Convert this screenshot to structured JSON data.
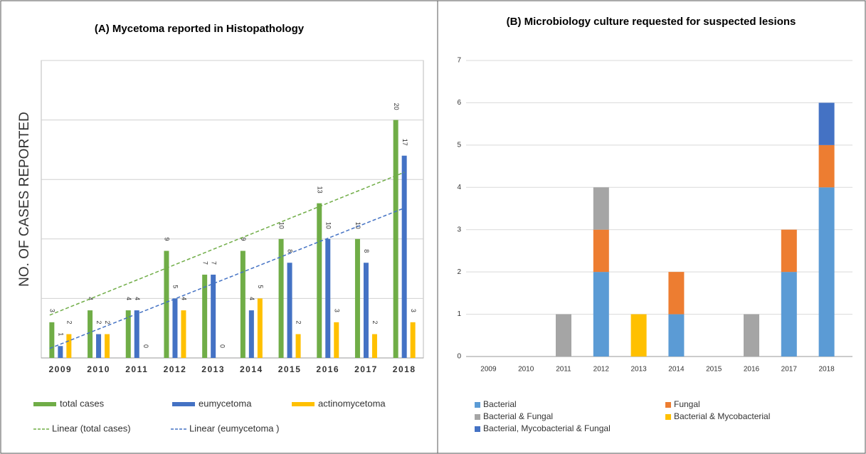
{
  "chart_data": [
    {
      "type": "bar",
      "title": "(A)  Mycetoma reported in Histopathology",
      "y_label": "NO. OF CASES REPORTED",
      "categories": [
        "2009",
        "2010",
        "2011",
        "2012",
        "2013",
        "2014",
        "2015",
        "2016",
        "2017",
        "2018"
      ],
      "series": [
        {
          "name": "total cases",
          "color": "#70ad47",
          "values": [
            3,
            4,
            4,
            9,
            7,
            9,
            10,
            13,
            10,
            20
          ]
        },
        {
          "name": "eumycetoma",
          "color": "#4472c4",
          "values": [
            1,
            2,
            4,
            5,
            7,
            4,
            8,
            10,
            8,
            17
          ]
        },
        {
          "name": "actinomycetoma",
          "color": "#ffc000",
          "values": [
            2,
            2,
            0,
            4,
            0,
            5,
            2,
            3,
            2,
            3
          ]
        }
      ],
      "trendlines": [
        {
          "name": "Linear (total cases)",
          "color": "#70ad47",
          "values": [
            3.6,
            15.6
          ]
        },
        {
          "name": "Linear (eumycetoma )",
          "color": "#4472c4",
          "values": [
            0.8,
            12.6
          ]
        }
      ],
      "ylim": [
        0,
        25
      ],
      "gridlines": [
        5,
        10,
        15,
        20,
        25
      ],
      "grid": true
    },
    {
      "type": "stacked_bar",
      "title": "(B) Microbiology culture requested for suspected lesions",
      "categories": [
        "2009",
        "2010",
        "2011",
        "2012",
        "2013",
        "2014",
        "2015",
        "2016",
        "2017",
        "2018"
      ],
      "series": [
        {
          "name": "Bacterial",
          "color": "#5b9bd5",
          "values": [
            0,
            0,
            0,
            2,
            0,
            1,
            0,
            0,
            2,
            4
          ]
        },
        {
          "name": "Fungal",
          "color": "#ed7d31",
          "values": [
            0,
            0,
            0,
            1,
            0,
            1,
            0,
            0,
            1,
            1
          ]
        },
        {
          "name": "Bacterial & Fungal",
          "color": "#a5a5a5",
          "values": [
            0,
            0,
            1,
            1,
            0,
            0,
            0,
            1,
            0,
            0
          ]
        },
        {
          "name": "Bacterial & Mycobacterial",
          "color": "#ffc000",
          "values": [
            0,
            0,
            0,
            0,
            1,
            0,
            0,
            0,
            0,
            0
          ]
        },
        {
          "name": "Bacterial, Mycobacterial & Fungal",
          "color": "#4472c4",
          "values": [
            0,
            0,
            0,
            0,
            0,
            0,
            0,
            0,
            0,
            1
          ]
        }
      ],
      "ylim": [
        0,
        7
      ],
      "yticks": [
        0,
        1,
        2,
        3,
        4,
        5,
        6,
        7
      ],
      "grid": true
    }
  ]
}
